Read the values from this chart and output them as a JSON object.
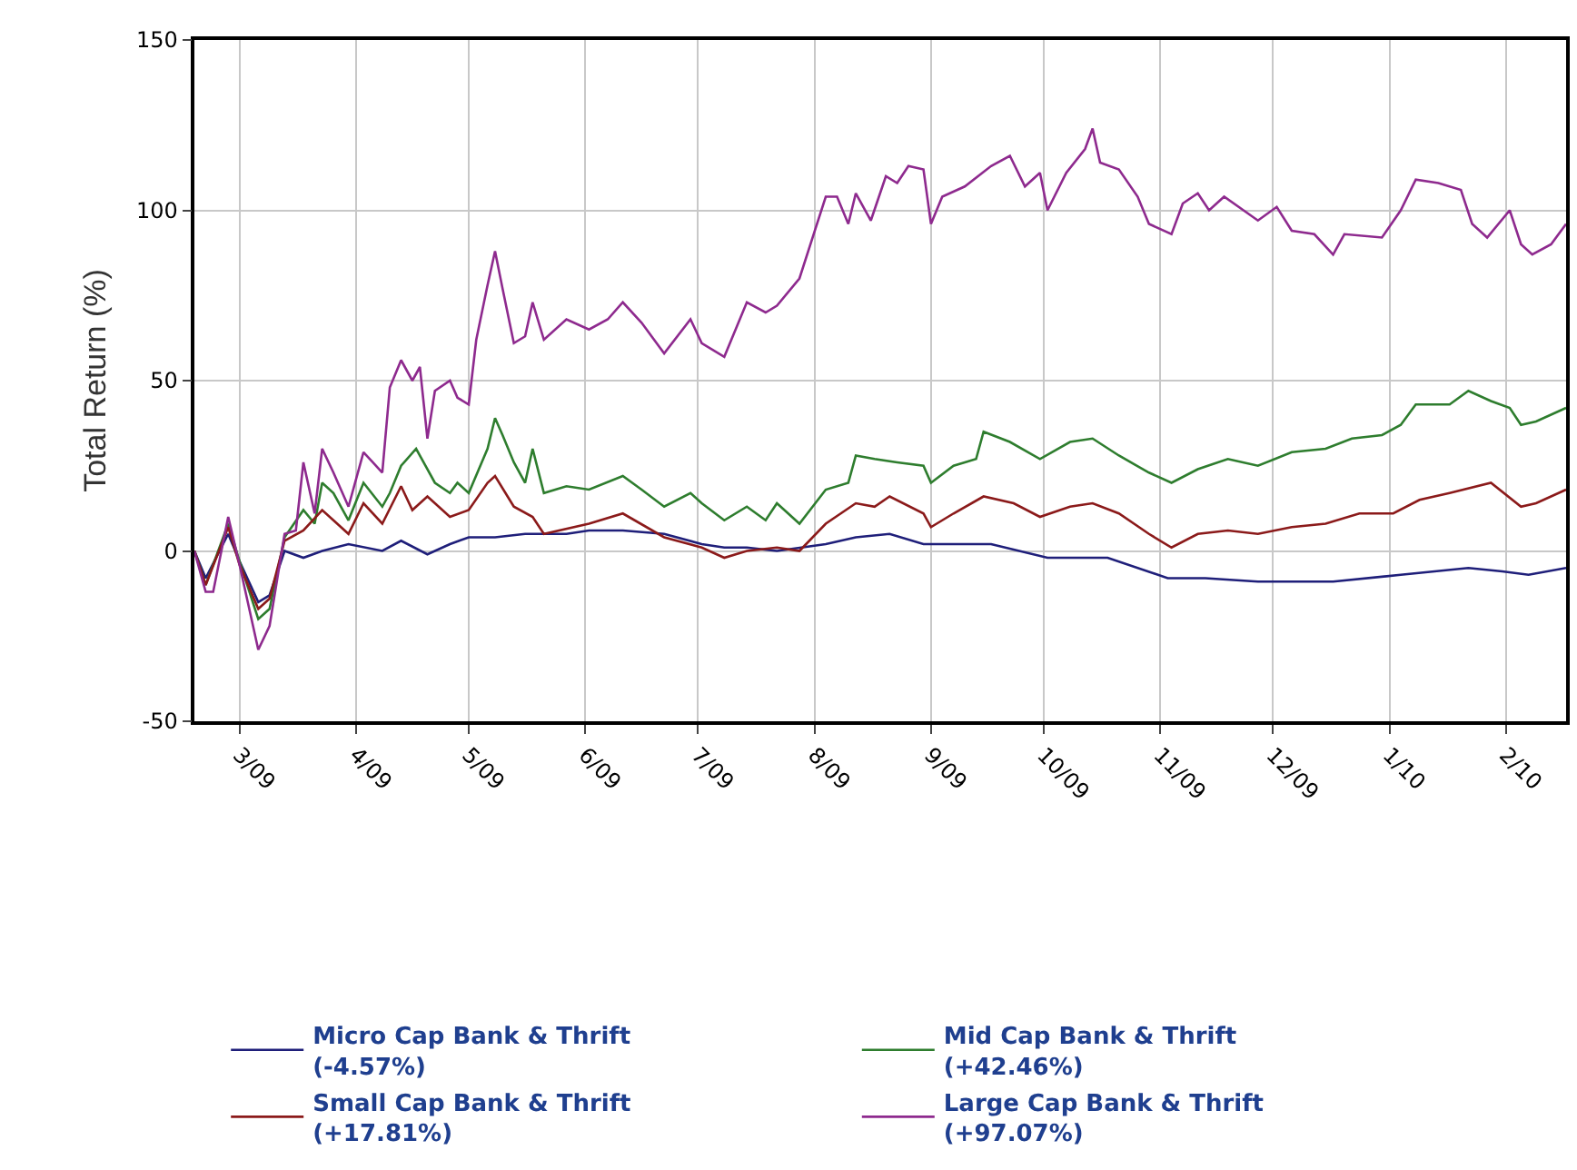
{
  "chart_data": {
    "type": "line",
    "ylabel": "Total Return (%)",
    "xlim": [
      "2009-02-17",
      "2010-02-17"
    ],
    "xticks": [
      {
        "value": "2009-03-01",
        "label": "3/09"
      },
      {
        "value": "2009-04-01",
        "label": "4/09"
      },
      {
        "value": "2009-05-01",
        "label": "5/09"
      },
      {
        "value": "2009-06-01",
        "label": "6/09"
      },
      {
        "value": "2009-07-01",
        "label": "7/09"
      },
      {
        "value": "2009-08-01",
        "label": "8/09"
      },
      {
        "value": "2009-09-01",
        "label": "9/09"
      },
      {
        "value": "2009-10-01",
        "label": "10/09"
      },
      {
        "value": "2009-11-01",
        "label": "11/09"
      },
      {
        "value": "2009-12-01",
        "label": "12/09"
      },
      {
        "value": "2010-01-01",
        "label": "1/10"
      },
      {
        "value": "2010-02-01",
        "label": "2/10"
      }
    ],
    "ylim": [
      -50,
      150
    ],
    "yticks": [
      -50,
      0,
      50,
      100,
      150
    ],
    "grid": true,
    "legend": "bottom",
    "series": [
      {
        "name": "Micro Cap Bank & Thrift\n(-4.57%)",
        "color": "#1f1f7a",
        "x": [
          "2009-02-17",
          "2009-02-20",
          "2009-02-26",
          "2009-03-01",
          "2009-03-06",
          "2009-03-09",
          "2009-03-13",
          "2009-03-18",
          "2009-03-23",
          "2009-03-30",
          "2009-04-08",
          "2009-04-13",
          "2009-04-20",
          "2009-04-26",
          "2009-05-01",
          "2009-05-08",
          "2009-05-16",
          "2009-05-27",
          "2009-06-02",
          "2009-06-11",
          "2009-06-22",
          "2009-07-02",
          "2009-07-08",
          "2009-07-14",
          "2009-07-22",
          "2009-08-04",
          "2009-08-12",
          "2009-08-21",
          "2009-08-30",
          "2009-09-17",
          "2009-10-02",
          "2009-10-18",
          "2009-11-03",
          "2009-11-13",
          "2009-11-27",
          "2009-12-17",
          "2010-01-04",
          "2010-01-22",
          "2010-01-31",
          "2010-02-07",
          "2010-02-17"
        ],
        "values": [
          0,
          -8,
          5,
          -3,
          -15,
          -13,
          0,
          -2,
          0,
          2,
          0,
          3,
          -1,
          2,
          4,
          4,
          5,
          5,
          6,
          6,
          5,
          2,
          1,
          1,
          0,
          2,
          4,
          5,
          2,
          2,
          -2,
          -2,
          -8,
          -8,
          -9,
          -9,
          -7,
          -5,
          -6,
          -7,
          -5
        ]
      },
      {
        "name": "Mid Cap Bank & Thrift\n(+42.46%)",
        "color": "#2e7d2e",
        "x": [
          "2009-02-17",
          "2009-02-20",
          "2009-02-26",
          "2009-03-01",
          "2009-03-06",
          "2009-03-09",
          "2009-03-13",
          "2009-03-18",
          "2009-03-21",
          "2009-03-23",
          "2009-03-26",
          "2009-03-30",
          "2009-04-03",
          "2009-04-08",
          "2009-04-10",
          "2009-04-13",
          "2009-04-17",
          "2009-04-22",
          "2009-04-26",
          "2009-04-28",
          "2009-05-01",
          "2009-05-06",
          "2009-05-08",
          "2009-05-10",
          "2009-05-13",
          "2009-05-16",
          "2009-05-18",
          "2009-05-21",
          "2009-05-27",
          "2009-06-02",
          "2009-06-11",
          "2009-06-16",
          "2009-06-22",
          "2009-06-29",
          "2009-07-02",
          "2009-07-08",
          "2009-07-14",
          "2009-07-19",
          "2009-07-22",
          "2009-07-28",
          "2009-08-04",
          "2009-08-10",
          "2009-08-12",
          "2009-08-17",
          "2009-08-23",
          "2009-08-30",
          "2009-09-01",
          "2009-09-07",
          "2009-09-13",
          "2009-09-15",
          "2009-09-22",
          "2009-09-30",
          "2009-10-08",
          "2009-10-14",
          "2009-10-21",
          "2009-10-29",
          "2009-11-04",
          "2009-11-11",
          "2009-11-19",
          "2009-11-27",
          "2009-12-06",
          "2009-12-15",
          "2009-12-22",
          "2009-12-30",
          "2010-01-04",
          "2010-01-08",
          "2010-01-17",
          "2010-01-22",
          "2010-01-28",
          "2010-02-02",
          "2010-02-05",
          "2010-02-09",
          "2010-02-17"
        ],
        "values": [
          0,
          -10,
          8,
          -3,
          -20,
          -17,
          4,
          12,
          8,
          20,
          17,
          9,
          20,
          13,
          17,
          25,
          30,
          20,
          17,
          20,
          17,
          30,
          39,
          34,
          26,
          20,
          30,
          17,
          19,
          18,
          22,
          18,
          13,
          17,
          14,
          9,
          13,
          9,
          14,
          8,
          18,
          20,
          28,
          27,
          26,
          25,
          20,
          25,
          27,
          35,
          32,
          27,
          32,
          33,
          28,
          23,
          20,
          24,
          27,
          25,
          29,
          30,
          33,
          34,
          37,
          43,
          43,
          47,
          44,
          42,
          37,
          38,
          42
        ]
      },
      {
        "name": "Small Cap Bank & Thrift\n(+17.81%)",
        "color": "#8b1a1a",
        "x": [
          "2009-02-17",
          "2009-02-20",
          "2009-02-26",
          "2009-03-01",
          "2009-03-06",
          "2009-03-09",
          "2009-03-13",
          "2009-03-18",
          "2009-03-23",
          "2009-03-26",
          "2009-03-30",
          "2009-04-03",
          "2009-04-08",
          "2009-04-13",
          "2009-04-16",
          "2009-04-20",
          "2009-04-26",
          "2009-05-01",
          "2009-05-06",
          "2009-05-08",
          "2009-05-13",
          "2009-05-18",
          "2009-05-21",
          "2009-06-02",
          "2009-06-11",
          "2009-06-22",
          "2009-07-02",
          "2009-07-08",
          "2009-07-14",
          "2009-07-22",
          "2009-07-28",
          "2009-08-04",
          "2009-08-12",
          "2009-08-17",
          "2009-08-21",
          "2009-08-30",
          "2009-09-01",
          "2009-09-07",
          "2009-09-15",
          "2009-09-23",
          "2009-09-30",
          "2009-10-08",
          "2009-10-14",
          "2009-10-21",
          "2009-10-29",
          "2009-11-04",
          "2009-11-11",
          "2009-11-19",
          "2009-11-27",
          "2009-12-06",
          "2009-12-15",
          "2009-12-24",
          "2010-01-02",
          "2010-01-09",
          "2010-01-17",
          "2010-01-28",
          "2010-02-05",
          "2010-02-09",
          "2010-02-17"
        ],
        "values": [
          0,
          -10,
          7,
          -4,
          -17,
          -14,
          3,
          6,
          12,
          9,
          5,
          14,
          8,
          19,
          12,
          16,
          10,
          12,
          20,
          22,
          13,
          10,
          5,
          8,
          11,
          4,
          1,
          -2,
          0,
          1,
          0,
          8,
          14,
          13,
          16,
          11,
          7,
          11,
          16,
          14,
          10,
          13,
          14,
          11,
          5,
          1,
          5,
          6,
          5,
          7,
          8,
          11,
          11,
          15,
          17,
          20,
          13,
          14,
          18
        ]
      },
      {
        "name": "Large Cap Bank & Thrift\n(+97.07%)",
        "color": "#8e2a8e",
        "x": [
          "2009-02-17",
          "2009-02-20",
          "2009-02-22",
          "2009-02-26",
          "2009-03-01",
          "2009-03-06",
          "2009-03-09",
          "2009-03-13",
          "2009-03-16",
          "2009-03-18",
          "2009-03-21",
          "2009-03-23",
          "2009-03-26",
          "2009-03-30",
          "2009-04-03",
          "2009-04-08",
          "2009-04-10",
          "2009-04-13",
          "2009-04-16",
          "2009-04-18",
          "2009-04-20",
          "2009-04-22",
          "2009-04-26",
          "2009-04-28",
          "2009-05-01",
          "2009-05-03",
          "2009-05-06",
          "2009-05-08",
          "2009-05-10",
          "2009-05-13",
          "2009-05-16",
          "2009-05-18",
          "2009-05-21",
          "2009-05-27",
          "2009-06-02",
          "2009-06-07",
          "2009-06-11",
          "2009-06-16",
          "2009-06-22",
          "2009-06-29",
          "2009-07-02",
          "2009-07-08",
          "2009-07-14",
          "2009-07-19",
          "2009-07-22",
          "2009-07-28",
          "2009-08-04",
          "2009-08-07",
          "2009-08-10",
          "2009-08-12",
          "2009-08-16",
          "2009-08-20",
          "2009-08-23",
          "2009-08-26",
          "2009-08-30",
          "2009-09-01",
          "2009-09-04",
          "2009-09-10",
          "2009-09-17",
          "2009-09-22",
          "2009-09-26",
          "2009-09-30",
          "2009-10-02",
          "2009-10-07",
          "2009-10-12",
          "2009-10-14",
          "2009-10-16",
          "2009-10-21",
          "2009-10-26",
          "2009-10-29",
          "2009-11-04",
          "2009-11-07",
          "2009-11-11",
          "2009-11-14",
          "2009-11-18",
          "2009-11-27",
          "2009-12-02",
          "2009-12-06",
          "2009-12-12",
          "2009-12-17",
          "2009-12-20",
          "2009-12-30",
          "2010-01-04",
          "2010-01-08",
          "2010-01-14",
          "2010-01-20",
          "2010-01-23",
          "2010-01-27",
          "2010-02-02",
          "2010-02-05",
          "2010-02-08",
          "2010-02-13",
          "2010-02-17"
        ],
        "values": [
          0,
          -12,
          -12,
          10,
          -4,
          -29,
          -22,
          5,
          6,
          26,
          11,
          30,
          23,
          13,
          29,
          23,
          48,
          56,
          50,
          54,
          33,
          47,
          50,
          45,
          43,
          62,
          78,
          88,
          77,
          61,
          63,
          73,
          62,
          68,
          65,
          68,
          73,
          67,
          58,
          68,
          61,
          57,
          73,
          70,
          72,
          80,
          104,
          104,
          96,
          105,
          97,
          110,
          108,
          113,
          112,
          96,
          104,
          107,
          113,
          116,
          107,
          111,
          100,
          111,
          118,
          124,
          114,
          112,
          104,
          96,
          93,
          102,
          105,
          100,
          104,
          97,
          101,
          94,
          93,
          87,
          93,
          92,
          100,
          109,
          108,
          106,
          96,
          92,
          100,
          90,
          87,
          90,
          96
        ]
      }
    ]
  }
}
